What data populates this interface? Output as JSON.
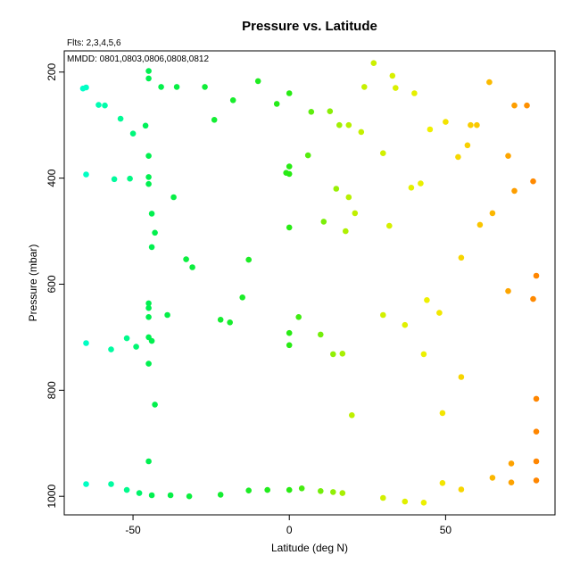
{
  "chart_data": {
    "type": "scatter",
    "title": "Pressure vs. Latitude",
    "annotations": [
      "Flts: 2,3,4,5,6",
      "MMDD: 0801,0803,0806,0808,0812"
    ],
    "xlabel": "Latitude (deg N)",
    "ylabel": "Pressure (mbar)",
    "xlim": [
      -72,
      85
    ],
    "ylim": [
      1035,
      160
    ],
    "y_reversed": true,
    "xticks": [
      -50,
      0,
      50
    ],
    "yticks": [
      200,
      400,
      600,
      800,
      1000
    ],
    "grid": false,
    "point_color_scale": "by latitude: cyan (south) → green → yellow → orange (north)",
    "points": [
      {
        "x": -66,
        "y": 231
      },
      {
        "x": -65,
        "y": 229
      },
      {
        "x": -61,
        "y": 262
      },
      {
        "x": -59,
        "y": 263
      },
      {
        "x": -54,
        "y": 288
      },
      {
        "x": -50,
        "y": 316
      },
      {
        "x": -46,
        "y": 301
      },
      {
        "x": -45,
        "y": 198
      },
      {
        "x": -45,
        "y": 212
      },
      {
        "x": -41,
        "y": 228
      },
      {
        "x": -36,
        "y": 228
      },
      {
        "x": -27,
        "y": 228
      },
      {
        "x": -24,
        "y": 290
      },
      {
        "x": -18,
        "y": 253
      },
      {
        "x": -10,
        "y": 217
      },
      {
        "x": -4,
        "y": 260
      },
      {
        "x": 0,
        "y": 240
      },
      {
        "x": 7,
        "y": 275
      },
      {
        "x": 13,
        "y": 274
      },
      {
        "x": 16,
        "y": 300
      },
      {
        "x": 19,
        "y": 300
      },
      {
        "x": 23,
        "y": 313
      },
      {
        "x": 24,
        "y": 228
      },
      {
        "x": 27,
        "y": 183
      },
      {
        "x": 33,
        "y": 207
      },
      {
        "x": 34,
        "y": 230
      },
      {
        "x": 40,
        "y": 240
      },
      {
        "x": 45,
        "y": 308
      },
      {
        "x": 50,
        "y": 294
      },
      {
        "x": 57,
        "y": 338
      },
      {
        "x": 58,
        "y": 300
      },
      {
        "x": 60,
        "y": 300
      },
      {
        "x": 54,
        "y": 360
      },
      {
        "x": 30,
        "y": 353
      },
      {
        "x": 6,
        "y": 357
      },
      {
        "x": 0,
        "y": 378
      },
      {
        "x": -1,
        "y": 390
      },
      {
        "x": 0,
        "y": 392
      },
      {
        "x": -45,
        "y": 358
      },
      {
        "x": -65,
        "y": 393
      },
      {
        "x": -56,
        "y": 402
      },
      {
        "x": -51,
        "y": 401
      },
      {
        "x": -45,
        "y": 398
      },
      {
        "x": -45,
        "y": 411
      },
      {
        "x": -37,
        "y": 436
      },
      {
        "x": 15,
        "y": 420
      },
      {
        "x": 19,
        "y": 436
      },
      {
        "x": 39,
        "y": 418
      },
      {
        "x": 42,
        "y": 410
      },
      {
        "x": 70,
        "y": 358
      },
      {
        "x": 72,
        "y": 424
      },
      {
        "x": 78,
        "y": 406
      },
      {
        "x": 64,
        "y": 219
      },
      {
        "x": 72,
        "y": 263
      },
      {
        "x": 76,
        "y": 263
      },
      {
        "x": -44,
        "y": 467
      },
      {
        "x": -43,
        "y": 503
      },
      {
        "x": -44,
        "y": 530
      },
      {
        "x": 0,
        "y": 493
      },
      {
        "x": 11,
        "y": 482
      },
      {
        "x": 18,
        "y": 500
      },
      {
        "x": 21,
        "y": 466
      },
      {
        "x": 32,
        "y": 490
      },
      {
        "x": 61,
        "y": 488
      },
      {
        "x": 65,
        "y": 466
      },
      {
        "x": -33,
        "y": 553
      },
      {
        "x": -31,
        "y": 568
      },
      {
        "x": -13,
        "y": 554
      },
      {
        "x": 55,
        "y": 550
      },
      {
        "x": 79,
        "y": 584
      },
      {
        "x": 70,
        "y": 613
      },
      {
        "x": 78,
        "y": 628
      },
      {
        "x": 44,
        "y": 630
      },
      {
        "x": -15,
        "y": 625
      },
      {
        "x": -45,
        "y": 636
      },
      {
        "x": -45,
        "y": 645
      },
      {
        "x": -45,
        "y": 662
      },
      {
        "x": -39,
        "y": 658
      },
      {
        "x": -22,
        "y": 667
      },
      {
        "x": -19,
        "y": 672
      },
      {
        "x": 3,
        "y": 662
      },
      {
        "x": 30,
        "y": 658
      },
      {
        "x": 37,
        "y": 677
      },
      {
        "x": 48,
        "y": 654
      },
      {
        "x": -65,
        "y": 711
      },
      {
        "x": -57,
        "y": 723
      },
      {
        "x": -52,
        "y": 702
      },
      {
        "x": -49,
        "y": 718
      },
      {
        "x": -45,
        "y": 700
      },
      {
        "x": -44,
        "y": 707
      },
      {
        "x": 0,
        "y": 692
      },
      {
        "x": 0,
        "y": 715
      },
      {
        "x": 10,
        "y": 695
      },
      {
        "x": 14,
        "y": 732
      },
      {
        "x": 17,
        "y": 731
      },
      {
        "x": 43,
        "y": 732
      },
      {
        "x": -45,
        "y": 750
      },
      {
        "x": 55,
        "y": 775
      },
      {
        "x": -43,
        "y": 827
      },
      {
        "x": 79,
        "y": 816
      },
      {
        "x": 20,
        "y": 847
      },
      {
        "x": 49,
        "y": 843
      },
      {
        "x": 79,
        "y": 878
      },
      {
        "x": -45,
        "y": 934
      },
      {
        "x": 71,
        "y": 938
      },
      {
        "x": 79,
        "y": 934
      },
      {
        "x": 65,
        "y": 965
      },
      {
        "x": 71,
        "y": 974
      },
      {
        "x": 79,
        "y": 970
      },
      {
        "x": 49,
        "y": 975
      },
      {
        "x": 55,
        "y": 987
      },
      {
        "x": -65,
        "y": 977
      },
      {
        "x": -57,
        "y": 977
      },
      {
        "x": -52,
        "y": 988
      },
      {
        "x": -48,
        "y": 994
      },
      {
        "x": -44,
        "y": 998
      },
      {
        "x": -38,
        "y": 998
      },
      {
        "x": -32,
        "y": 1000
      },
      {
        "x": -22,
        "y": 997
      },
      {
        "x": -13,
        "y": 989
      },
      {
        "x": -7,
        "y": 988
      },
      {
        "x": 0,
        "y": 988
      },
      {
        "x": 4,
        "y": 985
      },
      {
        "x": 10,
        "y": 990
      },
      {
        "x": 14,
        "y": 992
      },
      {
        "x": 17,
        "y": 994
      },
      {
        "x": 30,
        "y": 1003
      },
      {
        "x": 37,
        "y": 1010
      },
      {
        "x": 43,
        "y": 1012
      }
    ]
  }
}
